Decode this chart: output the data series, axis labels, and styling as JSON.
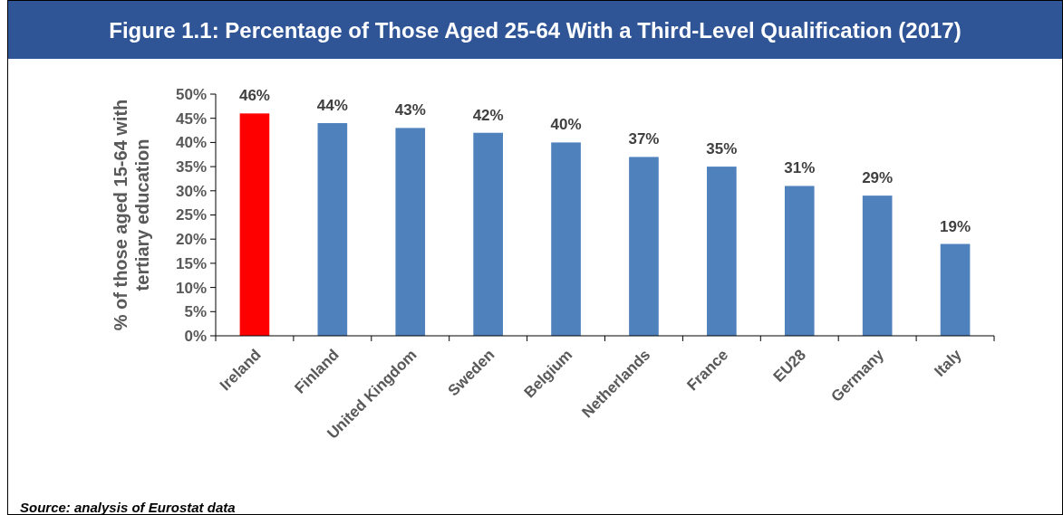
{
  "chart_data": {
    "type": "bar",
    "title": "Figure 1.1: Percentage of Those Aged 25-64 With a Third-Level Qualification (2017)",
    "ylabel": "% of those aged 15-64 with tertiary education",
    "categories": [
      "Ireland",
      "Finland",
      "United Kingdom",
      "Sweden",
      "Belgium",
      "Netherlands",
      "France",
      "EU28",
      "Germany",
      "Italy"
    ],
    "values": [
      46,
      44,
      43,
      42,
      40,
      37,
      35,
      31,
      29,
      19
    ],
    "colors": [
      "#ff0000",
      "#4f81bd",
      "#4f81bd",
      "#4f81bd",
      "#4f81bd",
      "#4f81bd",
      "#4f81bd",
      "#4f81bd",
      "#4f81bd",
      "#4f81bd"
    ],
    "value_labels": [
      "46%",
      "44%",
      "43%",
      "42%",
      "40%",
      "37%",
      "35%",
      "31%",
      "29%",
      "19%"
    ],
    "ylim": [
      0,
      50
    ],
    "yticks": [
      {
        "value": 0,
        "label": "0%"
      },
      {
        "value": 5,
        "label": "5%"
      },
      {
        "value": 10,
        "label": "10%"
      },
      {
        "value": 15,
        "label": "15%"
      },
      {
        "value": 20,
        "label": "20%"
      },
      {
        "value": 25,
        "label": "25%"
      },
      {
        "value": 30,
        "label": "30%"
      },
      {
        "value": 35,
        "label": "35%"
      },
      {
        "value": 40,
        "label": "40%"
      },
      {
        "value": 45,
        "label": "45%"
      },
      {
        "value": 50,
        "label": "50%"
      }
    ],
    "grid": false,
    "annotations": [
      "Source: analysis of Eurostat data"
    ]
  }
}
